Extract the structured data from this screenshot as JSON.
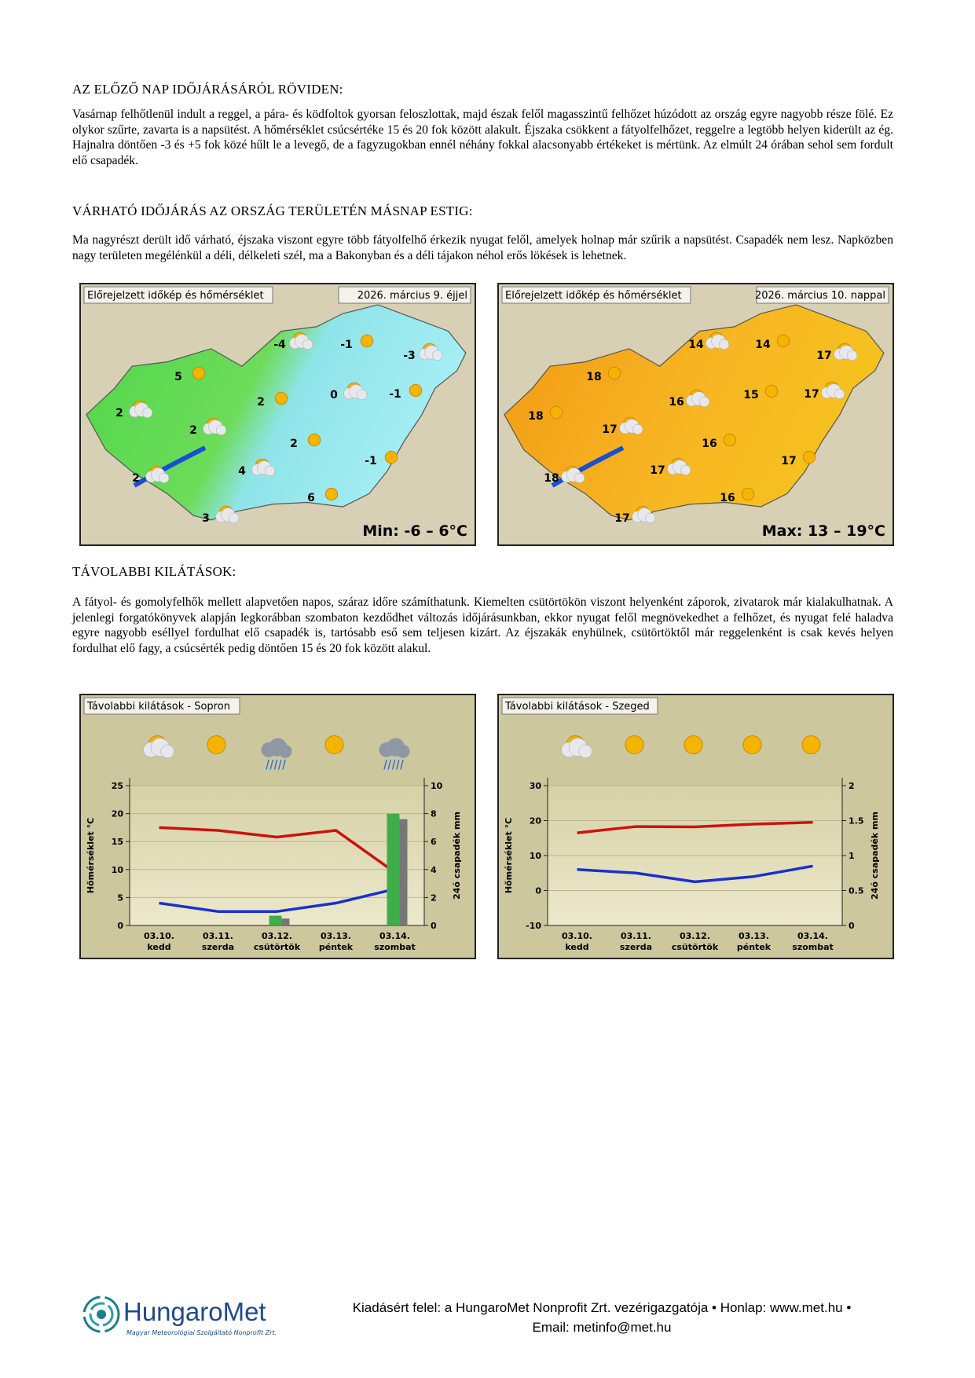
{
  "document": {
    "sections": [
      {
        "heading": "AZ ELŐZŐ NAP IDŐJÁRÁSÁRÓL RÖVIDEN:",
        "paragraph": "Vasárnap felhőtlenül indult a reggel, a pára- és ködfoltok gyorsan feloszlottak, majd észak felől magasszintű felhőzet húzódott az ország egyre nagyobb része fölé. Ez olykor szűrte, zavarta is a napsütést. A hőmérséklet csúcsértéke 15 és 20 fok között alakult. Éjszaka csökkent a fátyolfelhőzet, reggelre a legtöbb helyen kiderült az ég. Hajnalra döntően -3 és +5 fok közé hűlt le a levegő, de a fagyzugokban ennél néhány fokkal alacsonyabb értékeket is mértünk. Az elmúlt 24 órában sehol sem fordult elő csapadék."
      },
      {
        "heading": "VÁRHATÓ IDŐJÁRÁS AZ ORSZÁG TERÜLETÉN MÁSNAP ESTIG:",
        "paragraph": "Ma nagyrészt derült idő várható, éjszaka viszont egyre több fátyolfelhő érkezik nyugat felől, amelyek holnap már szűrik a napsütést. Csapadék nem lesz. Napközben nagy területen megélénkül a déli, délkeleti szél, ma a Bakonyban és a déli tájakon néhol erős lökések is lehetnek."
      },
      {
        "heading": "TÁVOLABBI KILÁTÁSOK:",
        "paragraph": "A fátyol- és gomolyfelhők mellett alapvetően napos, száraz időre számíthatunk. Kiemelten csütörtökön viszont helyenként záporok, zivatarok már kialakulhatnak. A jelenlegi forgatókönyvek alapján legkorábban szombaton kezdődhet változás időjárásunkban, ekkor nyugat felől megnövekedhet a felhőzet, és nyugat felé haladva egyre nagyobb eséllyel fordulhat elő csapadék is, tartósabb eső sem teljesen kizárt. Az éjszakák enyhülnek, csütörtöktől már reggelenként is csak kevés helyen fordulhat elő fagy, a csúcsérték pedig döntően 15 és 20 fok között alakul."
      }
    ],
    "maps": [
      {
        "title": "Előrejelzett időkép és hőmérséklet",
        "date": "2026. március 9. éjjel",
        "range": "Min: -6 – 6°C",
        "labels": [
          "-4",
          "-1",
          "-3",
          "5",
          "0",
          "-1",
          "2",
          "2",
          "2",
          "2",
          "4",
          "-1",
          "2",
          "6",
          "3"
        ]
      },
      {
        "title": "Előrejelzett időkép és hőmérséklet",
        "date": "2026. március 10. nappal",
        "range": "Max: 13 – 19°C",
        "labels": [
          "14",
          "14",
          "17",
          "18",
          "16",
          "15",
          "17",
          "18",
          "17",
          "16",
          "17",
          "17",
          "18",
          "16",
          "17"
        ]
      }
    ],
    "footer": {
      "logo": "HungaroMet",
      "logo_sub": "Magyar Meteorológiai Szolgáltató Nonprofit Zrt.",
      "line1": "Kiadásért felel: a HungaroMet Nonprofit Zrt. vezérigazgatója • Honlap: www.met.hu •",
      "line2": "Email: metinfo@met.hu"
    }
  },
  "chart_data": [
    {
      "type": "line",
      "title": "Távolabbi kilátások - Sopron",
      "categories": [
        "03.10.",
        "03.11.",
        "03.12.",
        "03.13.",
        "03.14."
      ],
      "weekdays": [
        "kedd",
        "szerda",
        "csütörtök",
        "péntek",
        "szombat"
      ],
      "ylabel": "Hőmérséklet °C",
      "y2label": "24ó csapadék mm",
      "ylim": [
        0,
        25
      ],
      "yticks": [
        0,
        5,
        10,
        15,
        20,
        25
      ],
      "y2lim": [
        0,
        10
      ],
      "y2ticks": [
        0,
        2,
        4,
        6,
        8,
        10
      ],
      "series": [
        {
          "color": "#cc1111",
          "values": [
            17.5,
            17,
            15.8,
            17,
            9.5
          ]
        },
        {
          "color": "#1a2fd0",
          "values": [
            4,
            2.5,
            2.5,
            4,
            6.5
          ]
        },
        {
          "type": "bar",
          "axis": "y2",
          "color": "#3fae49",
          "values": [
            0,
            0,
            0.7,
            0,
            8
          ]
        },
        {
          "type": "bar",
          "axis": "y2",
          "color": "#777777",
          "values": [
            0,
            0,
            0.5,
            0,
            7.6
          ]
        }
      ]
    },
    {
      "type": "line",
      "title": "Távolabbi kilátások - Szeged",
      "categories": [
        "03.10.",
        "03.11.",
        "03.12.",
        "03.13.",
        "03.14."
      ],
      "weekdays": [
        "kedd",
        "szerda",
        "csütörtök",
        "péntek",
        "szombat"
      ],
      "ylabel": "Hőmérséklet °C",
      "y2label": "24ó csapadék mm",
      "ylim": [
        -10,
        30
      ],
      "yticks": [
        -10,
        0,
        10,
        20,
        30
      ],
      "y2lim": [
        0,
        2
      ],
      "y2ticks": [
        0,
        0.5,
        1,
        1.5,
        2
      ],
      "series": [
        {
          "color": "#cc1111",
          "values": [
            16.5,
            18.3,
            18.2,
            19,
            19.5
          ]
        },
        {
          "color": "#1a2fd0",
          "values": [
            6,
            5,
            2.5,
            4,
            7
          ]
        }
      ]
    }
  ]
}
